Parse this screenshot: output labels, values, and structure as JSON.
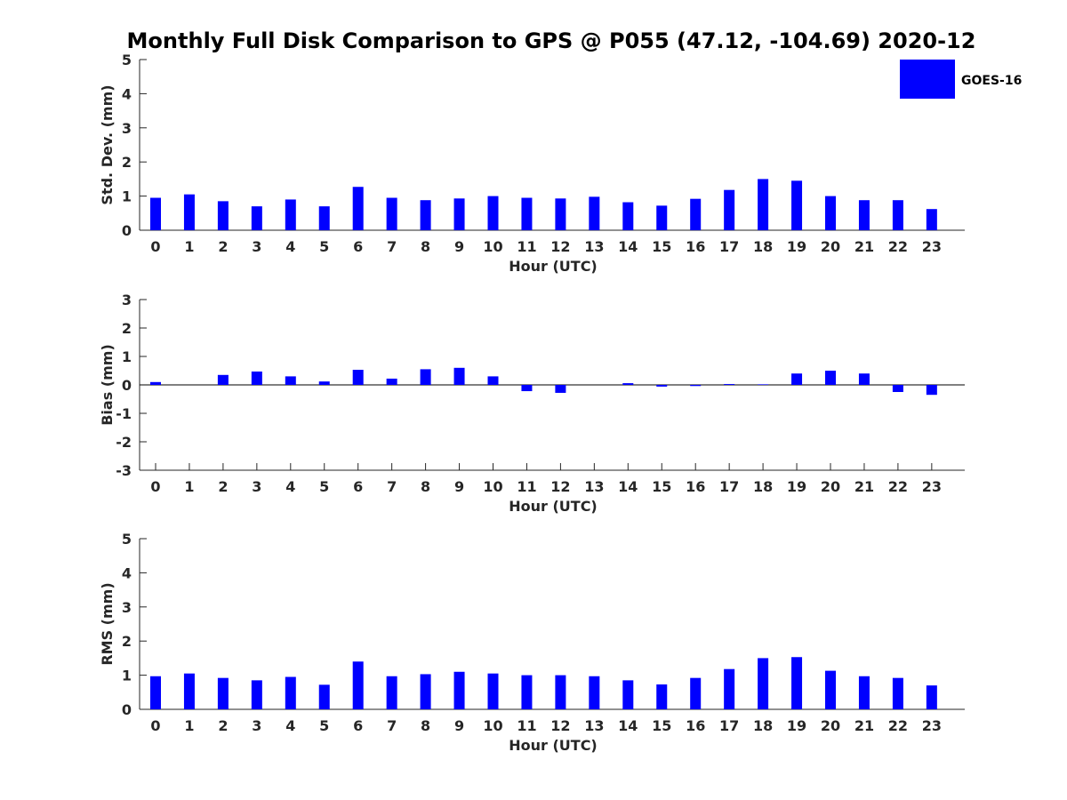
{
  "title": "Monthly Full Disk Comparison to GPS @ P055 (47.12, -104.69) 2020-12",
  "legend": {
    "label": "GOES-16",
    "color": "#0000ff",
    "placement": "top-right"
  },
  "chart_data": [
    {
      "type": "bar",
      "ylabel": "Std. Dev. (mm)",
      "xlabel": "Hour (UTC)",
      "ylim": [
        0,
        5
      ],
      "yticks": [
        0,
        1,
        2,
        3,
        4,
        5
      ],
      "categories": [
        "0",
        "1",
        "2",
        "3",
        "4",
        "5",
        "6",
        "7",
        "8",
        "9",
        "10",
        "11",
        "12",
        "13",
        "14",
        "15",
        "16",
        "17",
        "18",
        "19",
        "20",
        "21",
        "22",
        "23"
      ],
      "series": [
        {
          "name": "GOES-16",
          "color": "#0000ff",
          "values": [
            0.95,
            1.05,
            0.85,
            0.7,
            0.9,
            0.7,
            1.27,
            0.95,
            0.88,
            0.93,
            1.0,
            0.95,
            0.93,
            0.98,
            0.82,
            0.72,
            0.92,
            1.18,
            1.5,
            1.45,
            1.0,
            0.88,
            0.88,
            0.62
          ]
        }
      ],
      "grid": false
    },
    {
      "type": "bar",
      "ylabel": "Bias (mm)",
      "xlabel": "Hour (UTC)",
      "ylim": [
        -3,
        3
      ],
      "yticks": [
        -3,
        -2,
        -1,
        0,
        1,
        2,
        3
      ],
      "categories": [
        "0",
        "1",
        "2",
        "3",
        "4",
        "5",
        "6",
        "7",
        "8",
        "9",
        "10",
        "11",
        "12",
        "13",
        "14",
        "15",
        "16",
        "17",
        "18",
        "19",
        "20",
        "21",
        "22",
        "23"
      ],
      "series": [
        {
          "name": "GOES-16",
          "color": "#0000ff",
          "values": [
            0.1,
            0.0,
            0.35,
            0.47,
            0.3,
            0.12,
            0.53,
            0.22,
            0.55,
            0.6,
            0.3,
            -0.22,
            -0.28,
            0.0,
            0.06,
            -0.06,
            -0.04,
            0.03,
            0.02,
            0.4,
            0.5,
            0.4,
            -0.25,
            -0.35
          ]
        }
      ],
      "grid": false
    },
    {
      "type": "bar",
      "ylabel": "RMS (mm)",
      "xlabel": "Hour (UTC)",
      "ylim": [
        0,
        5
      ],
      "yticks": [
        0,
        1,
        2,
        3,
        4,
        5
      ],
      "categories": [
        "0",
        "1",
        "2",
        "3",
        "4",
        "5",
        "6",
        "7",
        "8",
        "9",
        "10",
        "11",
        "12",
        "13",
        "14",
        "15",
        "16",
        "17",
        "18",
        "19",
        "20",
        "21",
        "22",
        "23"
      ],
      "series": [
        {
          "name": "GOES-16",
          "color": "#0000ff",
          "values": [
            0.97,
            1.05,
            0.92,
            0.85,
            0.95,
            0.72,
            1.4,
            0.97,
            1.03,
            1.1,
            1.05,
            1.0,
            1.0,
            0.97,
            0.85,
            0.73,
            0.92,
            1.18,
            1.5,
            1.53,
            1.13,
            0.97,
            0.92,
            0.7
          ]
        }
      ],
      "grid": false
    }
  ]
}
